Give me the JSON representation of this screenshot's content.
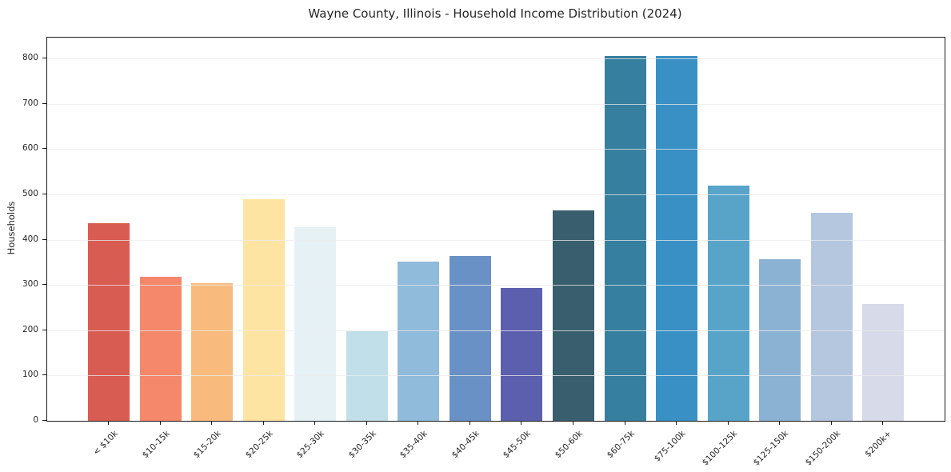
{
  "chart_data": {
    "type": "bar",
    "title": "Wayne County, Illinois - Household Income Distribution (2024)",
    "xlabel": "",
    "ylabel": "Households",
    "categories": [
      "< $10k",
      "$10-15k",
      "$15-20k",
      "$20-25k",
      "$25-30k",
      "$30-35k",
      "$35-40k",
      "$40-45k",
      "$45-50k",
      "$50-60k",
      "$60-75k",
      "$75-100k",
      "$100-125k",
      "$125-150k",
      "$150-200k",
      "$200k+"
    ],
    "values": [
      436,
      318,
      304,
      490,
      428,
      197,
      352,
      364,
      294,
      465,
      806,
      806,
      520,
      357,
      460,
      257
    ],
    "bar_colors": [
      "#d85c52",
      "#f5876a",
      "#f9bb7d",
      "#fde4a3",
      "#e5f1f5",
      "#c0dfe9",
      "#90bbdb",
      "#6a91c5",
      "#5c5fae",
      "#395f6f",
      "#377f9f",
      "#3990c4",
      "#58a4c9",
      "#8cb2d3",
      "#b4c7df",
      "#d7dae8"
    ],
    "ylim": [
      0,
      846
    ],
    "yticks": [
      0,
      100,
      200,
      300,
      400,
      500,
      600,
      700,
      800
    ],
    "grid": true,
    "grid_color": "#ebebeb",
    "axis_color": "#1a1a1a",
    "legend": false
  }
}
